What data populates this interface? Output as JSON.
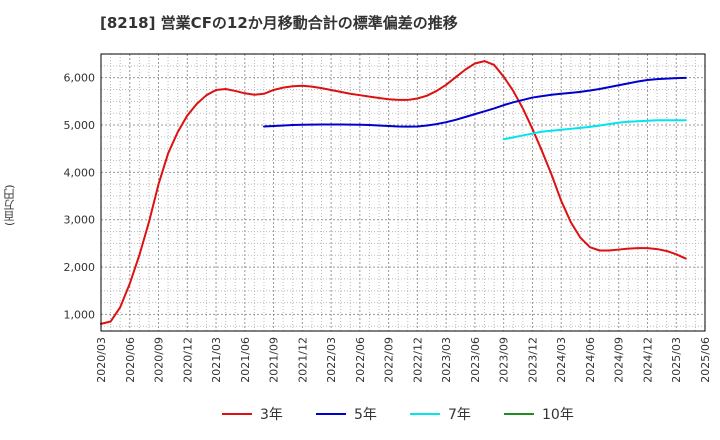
{
  "chart_data": {
    "type": "line",
    "title": "[8218]  営業CFの12か月移動合計の標準偏差の推移",
    "ylabel": "(百万円)",
    "xlabel": "",
    "ylim": [
      650,
      6500
    ],
    "y_ticks": [
      "1,000",
      "2,000",
      "3,000",
      "4,000",
      "5,000",
      "6,000"
    ],
    "y_tick_values": [
      1000,
      2000,
      3000,
      4000,
      5000,
      6000
    ],
    "x_ticks": [
      "2020/03",
      "2020/06",
      "2020/09",
      "2020/12",
      "2021/03",
      "2021/06",
      "2021/09",
      "2021/12",
      "2022/03",
      "2022/06",
      "2022/09",
      "2022/12",
      "2023/03",
      "2023/06",
      "2023/09",
      "2023/12",
      "2024/03",
      "2024/06",
      "2024/09",
      "2024/12",
      "2025/03",
      "2025/06"
    ],
    "grid": true,
    "legend_position": "bottom",
    "series": [
      {
        "name": "3年",
        "color": "#dd1111",
        "points": [
          [
            "2020/03",
            800
          ],
          [
            "2020/04",
            850
          ],
          [
            "2020/05",
            1150
          ],
          [
            "2020/06",
            1650
          ],
          [
            "2020/07",
            2250
          ],
          [
            "2020/08",
            2950
          ],
          [
            "2020/09",
            3750
          ],
          [
            "2020/10",
            4400
          ],
          [
            "2020/11",
            4850
          ],
          [
            "2020/12",
            5200
          ],
          [
            "2021/01",
            5450
          ],
          [
            "2021/02",
            5630
          ],
          [
            "2021/03",
            5740
          ],
          [
            "2021/04",
            5760
          ],
          [
            "2021/05",
            5720
          ],
          [
            "2021/06",
            5670
          ],
          [
            "2021/07",
            5640
          ],
          [
            "2021/08",
            5660
          ],
          [
            "2021/09",
            5740
          ],
          [
            "2021/10",
            5790
          ],
          [
            "2021/11",
            5820
          ],
          [
            "2021/12",
            5830
          ],
          [
            "2022/01",
            5810
          ],
          [
            "2022/02",
            5780
          ],
          [
            "2022/03",
            5740
          ],
          [
            "2022/04",
            5700
          ],
          [
            "2022/05",
            5660
          ],
          [
            "2022/06",
            5630
          ],
          [
            "2022/07",
            5600
          ],
          [
            "2022/08",
            5570
          ],
          [
            "2022/09",
            5545
          ],
          [
            "2022/10",
            5530
          ],
          [
            "2022/11",
            5530
          ],
          [
            "2022/12",
            5560
          ],
          [
            "2023/01",
            5620
          ],
          [
            "2023/02",
            5720
          ],
          [
            "2023/03",
            5850
          ],
          [
            "2023/04",
            6010
          ],
          [
            "2023/05",
            6170
          ],
          [
            "2023/06",
            6300
          ],
          [
            "2023/07",
            6350
          ],
          [
            "2023/08",
            6270
          ],
          [
            "2023/09",
            6020
          ],
          [
            "2023/10",
            5720
          ],
          [
            "2023/11",
            5350
          ],
          [
            "2023/12",
            4920
          ],
          [
            "2024/01",
            4450
          ],
          [
            "2024/02",
            3950
          ],
          [
            "2024/03",
            3400
          ],
          [
            "2024/04",
            2950
          ],
          [
            "2024/05",
            2620
          ],
          [
            "2024/06",
            2420
          ],
          [
            "2024/07",
            2350
          ],
          [
            "2024/08",
            2350
          ],
          [
            "2024/09",
            2370
          ],
          [
            "2024/10",
            2390
          ],
          [
            "2024/11",
            2400
          ],
          [
            "2024/12",
            2400
          ],
          [
            "2025/01",
            2380
          ],
          [
            "2025/02",
            2340
          ],
          [
            "2025/03",
            2270
          ],
          [
            "2025/04",
            2180
          ]
        ]
      },
      {
        "name": "5年",
        "color": "#0000cc",
        "points": [
          [
            "2021/08",
            4970
          ],
          [
            "2021/09",
            4980
          ],
          [
            "2021/10",
            4990
          ],
          [
            "2021/11",
            5000
          ],
          [
            "2021/12",
            5005
          ],
          [
            "2022/01",
            5008
          ],
          [
            "2022/02",
            5010
          ],
          [
            "2022/03",
            5010
          ],
          [
            "2022/04",
            5010
          ],
          [
            "2022/05",
            5008
          ],
          [
            "2022/06",
            5005
          ],
          [
            "2022/07",
            5000
          ],
          [
            "2022/08",
            4990
          ],
          [
            "2022/09",
            4980
          ],
          [
            "2022/10",
            4970
          ],
          [
            "2022/11",
            4965
          ],
          [
            "2022/12",
            4970
          ],
          [
            "2023/01",
            4990
          ],
          [
            "2023/02",
            5020
          ],
          [
            "2023/03",
            5060
          ],
          [
            "2023/04",
            5110
          ],
          [
            "2023/05",
            5170
          ],
          [
            "2023/06",
            5230
          ],
          [
            "2023/07",
            5290
          ],
          [
            "2023/08",
            5350
          ],
          [
            "2023/09",
            5420
          ],
          [
            "2023/10",
            5480
          ],
          [
            "2023/11",
            5530
          ],
          [
            "2023/12",
            5580
          ],
          [
            "2024/01",
            5610
          ],
          [
            "2024/02",
            5640
          ],
          [
            "2024/03",
            5660
          ],
          [
            "2024/04",
            5680
          ],
          [
            "2024/05",
            5700
          ],
          [
            "2024/06",
            5730
          ],
          [
            "2024/07",
            5760
          ],
          [
            "2024/08",
            5800
          ],
          [
            "2024/09",
            5840
          ],
          [
            "2024/10",
            5880
          ],
          [
            "2024/11",
            5920
          ],
          [
            "2024/12",
            5950
          ],
          [
            "2025/01",
            5970
          ],
          [
            "2025/02",
            5980
          ],
          [
            "2025/03",
            5990
          ],
          [
            "2025/04",
            5995
          ]
        ]
      },
      {
        "name": "7年",
        "color": "#00e5ee",
        "points": [
          [
            "2023/09",
            4700
          ],
          [
            "2023/10",
            4740
          ],
          [
            "2023/11",
            4780
          ],
          [
            "2023/12",
            4820
          ],
          [
            "2024/01",
            4860
          ],
          [
            "2024/02",
            4880
          ],
          [
            "2024/03",
            4900
          ],
          [
            "2024/04",
            4920
          ],
          [
            "2024/05",
            4940
          ],
          [
            "2024/06",
            4960
          ],
          [
            "2024/07",
            4990
          ],
          [
            "2024/08",
            5020
          ],
          [
            "2024/09",
            5050
          ],
          [
            "2024/10",
            5070
          ],
          [
            "2024/11",
            5080
          ],
          [
            "2024/12",
            5090
          ],
          [
            "2025/01",
            5100
          ],
          [
            "2025/02",
            5100
          ],
          [
            "2025/03",
            5100
          ],
          [
            "2025/04",
            5100
          ]
        ]
      },
      {
        "name": "10年",
        "color": "#228b22",
        "points": []
      }
    ]
  }
}
